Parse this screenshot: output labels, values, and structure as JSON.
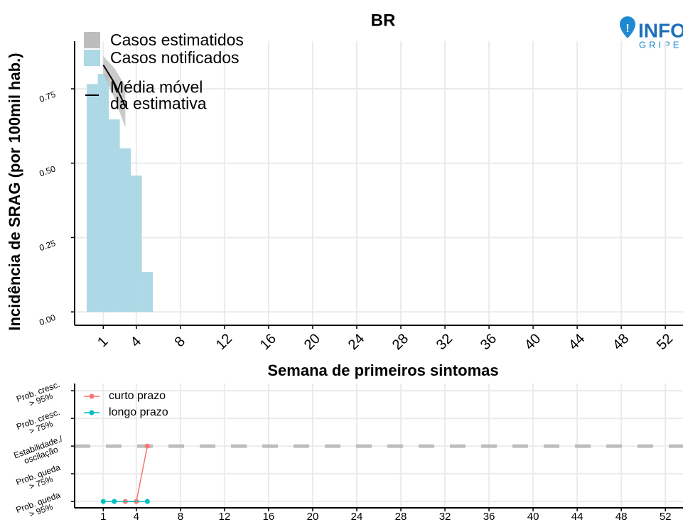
{
  "logo": {
    "text": "INFO",
    "subtext": "GRIPE"
  },
  "chart_data": [
    {
      "type": "bar",
      "title": "BR",
      "x_label": "Semana de primeiros sintomas",
      "y_label": "Incidência de SRAG (por 100mil hab.)",
      "xlim": [
        -1.6,
        53.6
      ],
      "xticks": [
        1,
        4,
        8,
        12,
        16,
        20,
        24,
        28,
        32,
        36,
        40,
        44,
        48,
        52
      ],
      "ylim": [
        -0.045,
        0.91
      ],
      "yticks": [
        {
          "value": 0,
          "label": "0.00"
        },
        {
          "value": 0.25,
          "label": "0.25"
        },
        {
          "value": 0.5,
          "label": "0.50"
        },
        {
          "value": 0.75,
          "label": "0.75"
        }
      ],
      "grid": true,
      "band": {
        "name": "Casos estimatidos",
        "color": "#bdbdbd",
        "x": [
          1,
          2,
          3
        ],
        "lower": [
          0.8,
          0.72,
          0.62
        ],
        "upper": [
          0.86,
          0.82,
          0.76
        ]
      },
      "series": [
        {
          "name": "Casos notificados",
          "color": "#add8e6",
          "x": [
            0,
            1,
            2,
            3,
            4,
            5
          ],
          "values": [
            0.766,
            0.8,
            0.647,
            0.55,
            0.458,
            0.134
          ]
        },
        {
          "name": "Média móvel\nda estimativa",
          "color": "#000000",
          "x": [
            1,
            2,
            3
          ],
          "values": [
            0.83,
            0.77,
            0.69
          ]
        }
      ]
    },
    {
      "type": "line",
      "xlim": [
        -1.6,
        53.6
      ],
      "xticks": [
        1,
        4,
        8,
        12,
        16,
        20,
        24,
        28,
        32,
        36,
        40,
        44,
        48,
        52
      ],
      "ylim": [
        0.77,
        5.26
      ],
      "yticks": [
        {
          "value": 1,
          "label": "Prob. queda\n> 95%"
        },
        {
          "value": 2,
          "label": "Prob. queda\n> 75%"
        },
        {
          "value": 3,
          "label": "Estabilidade./\noscilação"
        },
        {
          "value": 4,
          "label": "Prob. cresc.\n> 75%"
        },
        {
          "value": 5,
          "label": "Prob. cresc.\n> 95%"
        }
      ],
      "grid": true,
      "hline": 3,
      "series": [
        {
          "name": "curto prazo",
          "color": "#f8766d",
          "x": [
            3,
            4,
            5
          ],
          "values": [
            1,
            1,
            3
          ]
        },
        {
          "name": "longo prazo",
          "color": "#00bfc4",
          "x": [
            1,
            2,
            5
          ],
          "values": [
            1,
            1,
            1
          ]
        }
      ]
    }
  ]
}
